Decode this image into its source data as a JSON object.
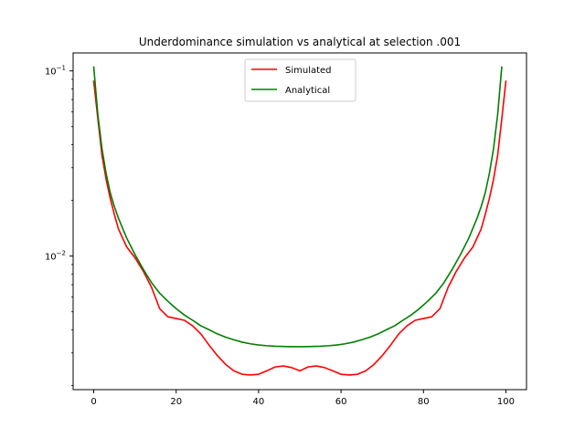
{
  "chart_data": {
    "type": "line",
    "title": "Underdominance simulation vs analytical at selection .001",
    "xlabel": "",
    "ylabel": "",
    "xlim": [
      -5,
      105
    ],
    "ylim": [
      0.0019,
      0.125
    ],
    "yscale": "log",
    "grid": false,
    "legend_position": "top-center",
    "x_ticks": [
      0,
      20,
      40,
      60,
      80,
      100
    ],
    "x_tick_labels": [
      "0",
      "20",
      "40",
      "60",
      "80",
      "100"
    ],
    "y_ticks": [
      0.01,
      0.1
    ],
    "y_tick_labels": [
      "10^-2",
      "10^-1"
    ],
    "series": [
      {
        "name": "Simulated",
        "color": "#ff0000",
        "x": [
          0,
          1,
          2,
          3,
          4,
          5,
          6,
          8,
          10,
          12,
          14,
          16,
          18,
          20,
          22,
          24,
          26,
          28,
          30,
          32,
          34,
          36,
          38,
          40,
          42,
          44,
          46,
          48,
          50,
          52,
          54,
          56,
          58,
          60,
          62,
          64,
          66,
          68,
          70,
          72,
          74,
          76,
          78,
          80,
          82,
          84,
          86,
          88,
          90,
          92,
          94,
          95,
          96,
          97,
          98,
          99,
          100
        ],
        "y": [
          0.088,
          0.055,
          0.035,
          0.026,
          0.0205,
          0.0168,
          0.014,
          0.0112,
          0.0098,
          0.0083,
          0.0068,
          0.0052,
          0.0047,
          0.0046,
          0.0045,
          0.0042,
          0.0038,
          0.0033,
          0.0029,
          0.0026,
          0.0024,
          0.0023,
          0.00228,
          0.0023,
          0.0024,
          0.00252,
          0.00255,
          0.0025,
          0.0024,
          0.00252,
          0.00255,
          0.0025,
          0.0024,
          0.0023,
          0.00228,
          0.0023,
          0.0024,
          0.0026,
          0.0029,
          0.0033,
          0.0038,
          0.0042,
          0.0045,
          0.0046,
          0.0047,
          0.0052,
          0.0068,
          0.0083,
          0.0098,
          0.0112,
          0.014,
          0.0168,
          0.0205,
          0.026,
          0.035,
          0.055,
          0.088
        ]
      },
      {
        "name": "Analytical",
        "color": "#008000",
        "x": [
          0,
          1,
          2,
          3,
          4,
          5,
          6,
          8,
          10,
          12,
          14,
          16,
          18,
          20,
          22,
          24,
          26,
          28,
          30,
          32,
          34,
          36,
          38,
          40,
          42,
          44,
          46,
          48,
          49.5,
          51,
          53,
          55,
          57,
          59,
          61,
          63,
          65,
          67,
          69,
          71,
          73,
          75,
          77,
          79,
          81,
          83,
          85,
          87,
          89,
          91,
          93,
          94,
          95,
          96,
          97,
          98,
          99
        ],
        "y": [
          0.105,
          0.058,
          0.038,
          0.028,
          0.022,
          0.0185,
          0.016,
          0.0125,
          0.0102,
          0.0085,
          0.0072,
          0.0063,
          0.0057,
          0.0052,
          0.0048,
          0.0045,
          0.0042,
          0.004,
          0.0038,
          0.00365,
          0.00353,
          0.00343,
          0.00336,
          0.00331,
          0.00328,
          0.00326,
          0.00325,
          0.00324,
          0.00324,
          0.00324,
          0.00325,
          0.00326,
          0.00328,
          0.00331,
          0.00336,
          0.00343,
          0.00353,
          0.00365,
          0.0038,
          0.004,
          0.0042,
          0.0045,
          0.0048,
          0.0052,
          0.0057,
          0.0063,
          0.0072,
          0.0085,
          0.0102,
          0.0125,
          0.016,
          0.0185,
          0.022,
          0.028,
          0.038,
          0.058,
          0.105
        ]
      }
    ]
  }
}
